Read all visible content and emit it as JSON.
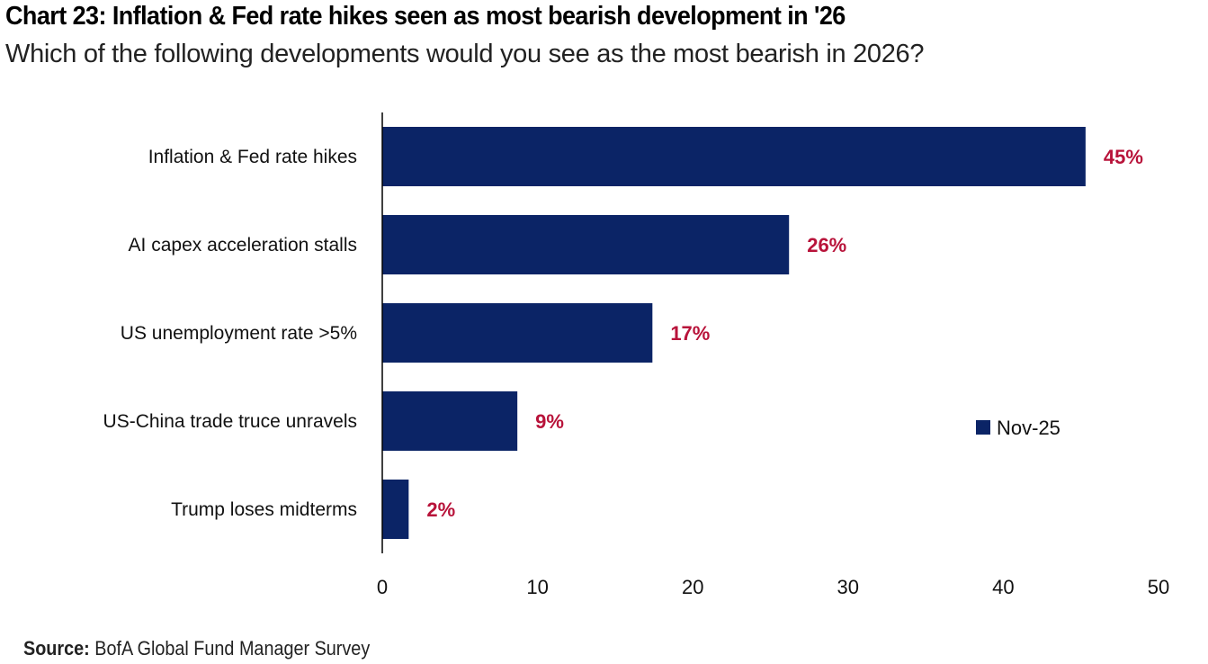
{
  "title": "Chart 23: Inflation & Fed rate hikes seen as most bearish development in '26",
  "subtitle": "Which of the following developments would you see as the most bearish in 2026?",
  "source_label": "Source:",
  "source_text": "BofA Global Fund Manager Survey",
  "colors": {
    "bar": "#0B2466",
    "label": "#B8133A"
  },
  "chart_data": {
    "type": "bar",
    "orientation": "horizontal",
    "title": "Chart 23: Inflation & Fed rate hikes seen as most bearish development in '26",
    "subtitle": "Which of the following developments would you see as the most bearish in 2026?",
    "categories": [
      "Inflation & Fed rate hikes",
      "AI capex acceleration stalls",
      "US unemployment rate >5%",
      "US-China trade truce unravels",
      "Trump loses midterms"
    ],
    "series": [
      {
        "name": "Nov-25",
        "values": [
          45.3,
          26.2,
          17.4,
          8.7,
          1.7
        ]
      }
    ],
    "data_labels": [
      "45%",
      "26%",
      "17%",
      "9%",
      "2%"
    ],
    "xlim": [
      0,
      50
    ],
    "xticks": [
      "0",
      "10",
      "20",
      "30",
      "40",
      "50"
    ],
    "xlabel": "",
    "ylabel": "",
    "grid": false,
    "legend": {
      "entries": [
        "Nov-25"
      ],
      "placement": "right"
    }
  }
}
